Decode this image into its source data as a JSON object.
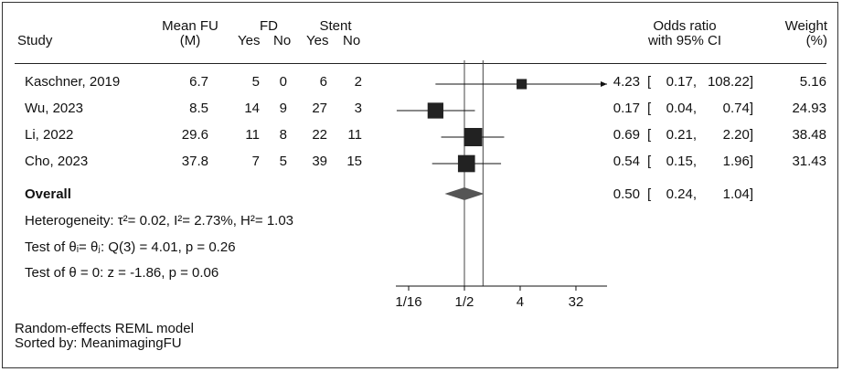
{
  "header": {
    "study": "Study",
    "mean_fu": "Mean FU",
    "mean_fu_unit": "(M)",
    "fd": "FD",
    "stent": "Stent",
    "fd_yes": "Yes",
    "fd_no": "No",
    "stent_yes": "Yes",
    "stent_no": "No",
    "or_line1": "Odds ratio",
    "or_line2": "with 95% CI",
    "weight_line1": "Weight",
    "weight_line2": "(%)"
  },
  "rows": [
    {
      "study": "Kaschner, 2019",
      "mean_fu": "6.7",
      "fd_yes": "5",
      "fd_no": "0",
      "stent_yes": "6",
      "stent_no": "2",
      "or": "4.23",
      "lo": "0.17,",
      "hi": "108.22]",
      "weight": "5.16"
    },
    {
      "study": "Wu, 2023",
      "mean_fu": "8.5",
      "fd_yes": "14",
      "fd_no": "9",
      "stent_yes": "27",
      "stent_no": "3",
      "or": "0.17",
      "lo": "0.04,",
      "hi": "0.74]",
      "weight": "24.93"
    },
    {
      "study": "Li, 2022",
      "mean_fu": "29.6",
      "fd_yes": "11",
      "fd_no": "8",
      "stent_yes": "22",
      "stent_no": "11",
      "or": "0.69",
      "lo": "0.21,",
      "hi": "2.20]",
      "weight": "38.48"
    },
    {
      "study": "Cho, 2023",
      "mean_fu": "37.8",
      "fd_yes": "7",
      "fd_no": "5",
      "stent_yes": "39",
      "stent_no": "15",
      "or": "0.54",
      "lo": "0.15,",
      "hi": "1.96]",
      "weight": "31.43"
    }
  ],
  "overall": {
    "label": "Overall",
    "or": "0.50",
    "lo": "0.24,",
    "hi": "1.04]"
  },
  "stats": {
    "heterogeneity": "Heterogeneity: τ²= 0.02, I²= 2.73%, H²= 1.03",
    "test_theta_i": "Test of θᵢ= θⱼ: Q(3) = 4.01, p = 0.26",
    "test_theta_0": "Test of θ = 0: z = -1.86, p = 0.06"
  },
  "footer": {
    "model": "Random-effects REML model",
    "sorted": "Sorted by: MeanimagingFU"
  },
  "chart_data": {
    "type": "forest",
    "x_scale": "log2",
    "x_ticks": [
      {
        "label": "1/16",
        "value": 0.0625
      },
      {
        "label": "1/2",
        "value": 0.5
      },
      {
        "label": "4",
        "value": 4
      },
      {
        "label": "32",
        "value": 32
      }
    ],
    "reference_lines": [
      1,
      0.5
    ],
    "studies": [
      {
        "name": "Kaschner, 2019",
        "or": 4.23,
        "ci": [
          0.17,
          108.22
        ],
        "weight": 5.16
      },
      {
        "name": "Wu, 2023",
        "or": 0.17,
        "ci": [
          0.04,
          0.74
        ],
        "weight": 24.93
      },
      {
        "name": "Li, 2022",
        "or": 0.69,
        "ci": [
          0.21,
          2.2
        ],
        "weight": 38.48
      },
      {
        "name": "Cho, 2023",
        "or": 0.54,
        "ci": [
          0.15,
          1.96
        ],
        "weight": 31.43
      }
    ],
    "overall": {
      "or": 0.5,
      "ci": [
        0.24,
        1.04
      ]
    },
    "marker_color": "#222222",
    "diamond_color": "#555555"
  }
}
